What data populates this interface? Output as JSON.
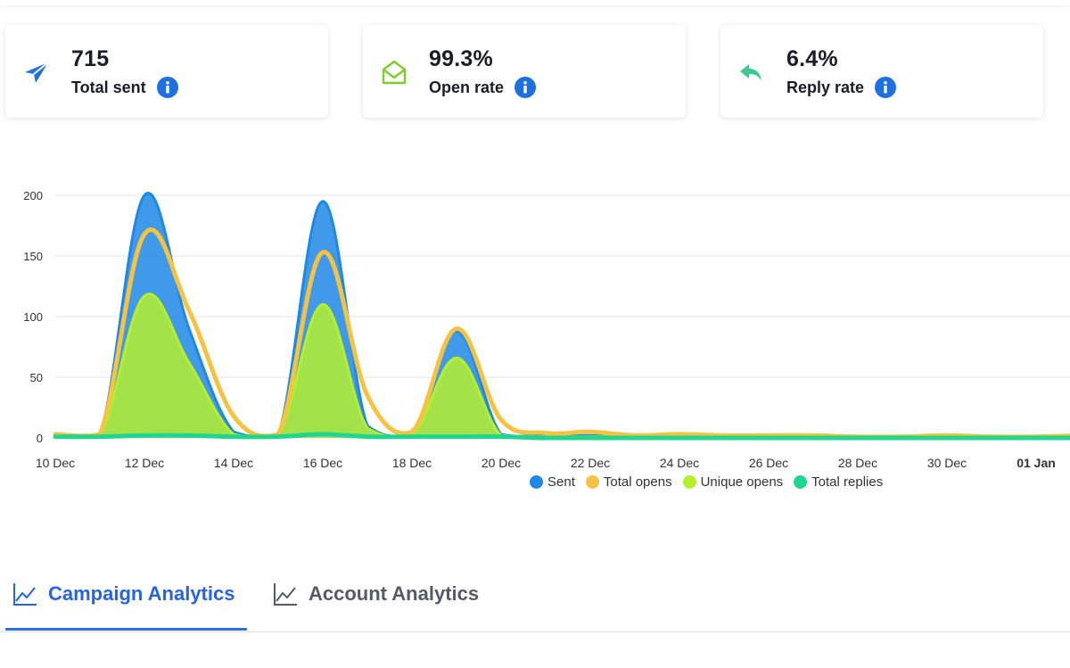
{
  "stats": {
    "total_sent": {
      "value": "715",
      "label": "Total sent",
      "icon": "paper-plane-icon",
      "color": "#1e6fe0"
    },
    "open_rate": {
      "value": "99.3%",
      "label": "Open rate",
      "icon": "open-envelope-icon",
      "color": "#7ccf2b"
    },
    "reply_rate": {
      "value": "6.4%",
      "label": "Reply rate",
      "icon": "reply-arrow-icon",
      "color": "#3cc98f"
    }
  },
  "info_icon_color": "#1e6fe0",
  "chart_data": {
    "type": "area",
    "x_tick_labels": [
      "10 Dec",
      "12 Dec",
      "14 Dec",
      "16 Dec",
      "18 Dec",
      "20 Dec",
      "22 Dec",
      "24 Dec",
      "26 Dec",
      "28 Dec",
      "30 Dec",
      "01 Jan"
    ],
    "y_ticks": [
      0,
      50,
      100,
      150,
      200
    ],
    "ylim": [
      0,
      200
    ],
    "grid": true,
    "legend_position": "bottom",
    "x": [
      "10 Dec",
      "11 Dec",
      "12 Dec",
      "13 Dec",
      "14 Dec",
      "15 Dec",
      "16 Dec",
      "17 Dec",
      "18 Dec",
      "19 Dec",
      "20 Dec",
      "21 Dec",
      "22 Dec",
      "23 Dec",
      "24 Dec",
      "25 Dec",
      "26 Dec",
      "27 Dec",
      "28 Dec",
      "29 Dec",
      "30 Dec",
      "31 Dec",
      "01 Jan",
      "02 Jan"
    ],
    "series": [
      {
        "name": "Sent",
        "color": "#1e88e5",
        "style": "area",
        "values": [
          3,
          3,
          200,
          90,
          5,
          3,
          195,
          10,
          3,
          88,
          3,
          2,
          2,
          1,
          1,
          1,
          1,
          1,
          1,
          1,
          1,
          1,
          1,
          1
        ]
      },
      {
        "name": "Total opens",
        "color": "#f5c242",
        "style": "line",
        "values": [
          3,
          3,
          168,
          105,
          18,
          3,
          153,
          35,
          5,
          90,
          15,
          4,
          5,
          2,
          3,
          2,
          2,
          2,
          1,
          1,
          2,
          1,
          1,
          2
        ]
      },
      {
        "name": "Unique opens",
        "color": "#b5f02d",
        "style": "area",
        "values": [
          2,
          2,
          117,
          62,
          3,
          2,
          110,
          8,
          2,
          66,
          2,
          1,
          1,
          1,
          1,
          1,
          1,
          1,
          1,
          1,
          1,
          1,
          1,
          1
        ]
      },
      {
        "name": "Total replies",
        "color": "#1fd68e",
        "style": "line",
        "values": [
          1,
          1,
          2,
          2,
          1,
          1,
          3,
          1,
          1,
          1,
          1,
          0,
          0,
          0,
          0,
          0,
          0,
          0,
          0,
          0,
          0,
          0,
          0,
          0
        ]
      }
    ]
  },
  "tabs": [
    {
      "label": "Campaign Analytics",
      "active": true,
      "icon": "line-chart-icon"
    },
    {
      "label": "Account Analytics",
      "active": false,
      "icon": "line-chart-icon"
    }
  ]
}
